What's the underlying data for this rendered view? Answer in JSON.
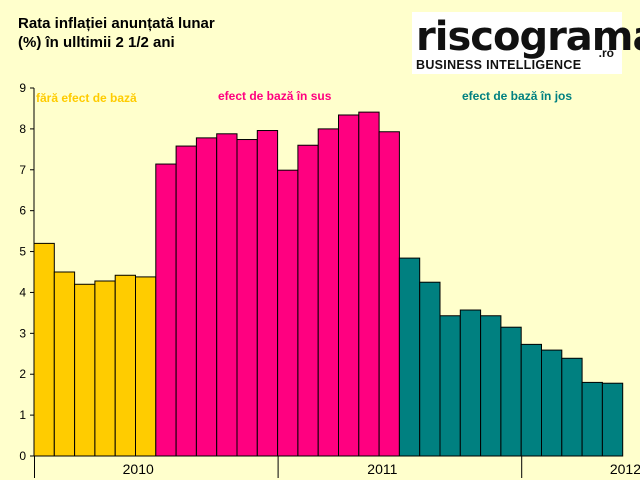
{
  "header": {
    "title_line1": "Rata inflației anunțată lunar",
    "title_line2": "(%) în ulltimii 2 1/2 ani"
  },
  "logo": {
    "wordmark": "riscograma",
    "tld": ".ro",
    "tagline": "BUSINESS INTELLIGENCE"
  },
  "colors": {
    "background": "#ffffcc",
    "no_base_effect": "#ffcc00",
    "upward_base_effect": "#ff0080",
    "downward_base_effect": "#008080",
    "bar_stroke": "#000000",
    "grid": "#000000"
  },
  "chart_data": {
    "type": "bar",
    "ylim": [
      0,
      9
    ],
    "y_ticks": [
      0,
      1,
      2,
      3,
      4,
      5,
      6,
      7,
      8,
      9
    ],
    "grid": false,
    "x_tick_labels": [
      {
        "label": "2010",
        "after_index": 5
      },
      {
        "label": "2011",
        "after_index": 17
      },
      {
        "label": "2012",
        "after_index": 29
      }
    ],
    "annotations": [
      {
        "text": "fără efect de bază",
        "color": "#ffcc00"
      },
      {
        "text": "efect de bază în sus",
        "color": "#ff0080"
      },
      {
        "text": "efect de bază în jos",
        "color": "#008080"
      }
    ],
    "series": [
      {
        "color": "#ffcc00",
        "start_index": 0,
        "values": [
          5.2,
          4.5,
          4.2,
          4.28,
          4.42,
          4.38
        ]
      },
      {
        "color": "#ff0080",
        "start_index": 6,
        "values": [
          7.14,
          7.58,
          7.78,
          7.88,
          7.74,
          7.96,
          6.99,
          7.6,
          8.0,
          8.34,
          8.41,
          7.93
        ]
      },
      {
        "color": "#008080",
        "start_index": 18,
        "values": [
          4.84,
          4.25,
          3.43,
          3.57,
          3.43,
          3.15,
          2.73,
          2.59,
          2.39,
          1.8,
          1.78
        ]
      }
    ]
  }
}
